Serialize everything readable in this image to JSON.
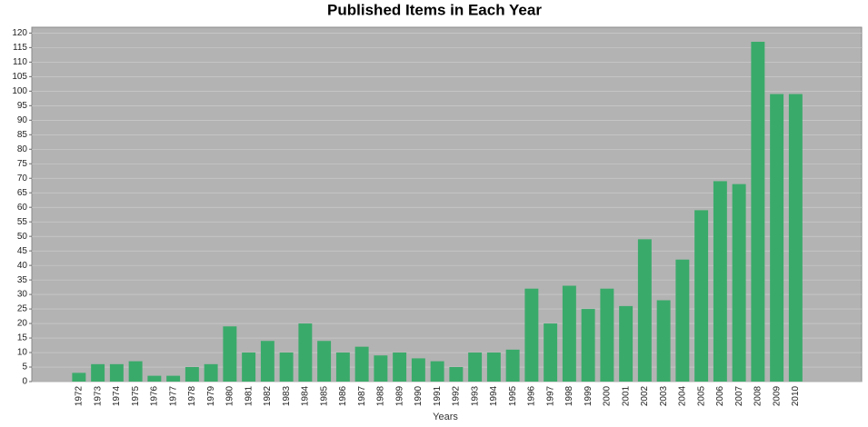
{
  "chart_data": {
    "type": "bar",
    "title": "Published Items in Each Year",
    "x_label": "Years",
    "categories": [
      "1972",
      "1973",
      "1974",
      "1975",
      "1976",
      "1977",
      "1978",
      "1979",
      "1980",
      "1981",
      "1982",
      "1983",
      "1984",
      "1985",
      "1986",
      "1987",
      "1988",
      "1989",
      "1990",
      "1991",
      "1992",
      "1993",
      "1994",
      "1995",
      "1996",
      "1997",
      "1998",
      "1999",
      "2000",
      "2001",
      "2002",
      "2003",
      "2004",
      "2005",
      "2006",
      "2007",
      "2008",
      "2009",
      "2010"
    ],
    "values": [
      3,
      6,
      6,
      7,
      2,
      2,
      5,
      6,
      19,
      10,
      14,
      10,
      20,
      14,
      10,
      12,
      9,
      10,
      8,
      7,
      5,
      10,
      10,
      11,
      32,
      20,
      33,
      25,
      32,
      26,
      49,
      28,
      42,
      59,
      69,
      68,
      117,
      99,
      99
    ],
    "color": "#3aaa6a",
    "ylim": [
      0,
      122
    ],
    "yticks": [
      0,
      5,
      10,
      15,
      20,
      25,
      30,
      35,
      40,
      45,
      50,
      55,
      60,
      65,
      70,
      75,
      80,
      85,
      90,
      95,
      100,
      105,
      110,
      115,
      120
    ],
    "grid": true
  }
}
